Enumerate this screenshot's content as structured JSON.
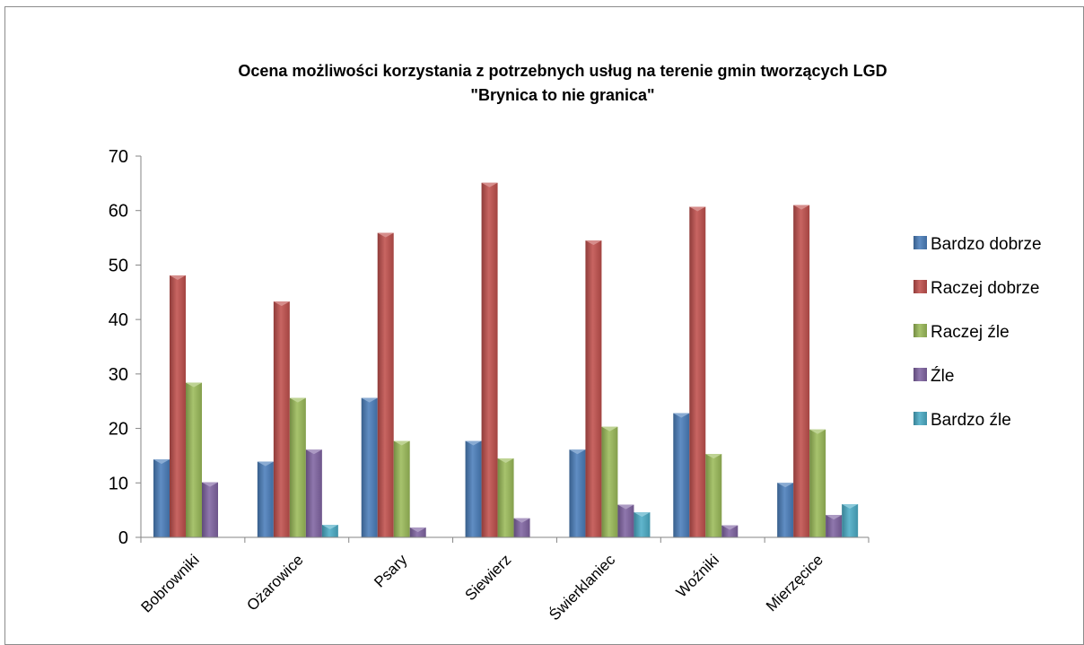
{
  "chart_data": {
    "type": "bar",
    "title_lines": [
      "Ocena możliwości korzystania z potrzebnych usług  na terenie gmin tworzących LGD",
      "\"Brynica to nie granica\""
    ],
    "categories": [
      "Bobrowniki",
      "Ożarowice",
      "Psary",
      "Siewierz",
      "Świerklaniec",
      "Woźniki",
      "Mierzęcice"
    ],
    "ylim": [
      0,
      70
    ],
    "yticks": [
      0,
      10,
      20,
      30,
      40,
      50,
      60,
      70
    ],
    "legend_position": "right",
    "grid": false,
    "series": [
      {
        "name": "Bardzo dobrze",
        "color": "#4a7ebb",
        "values": [
          14.3,
          13.9,
          25.6,
          17.7,
          16.1,
          22.8,
          10.0
        ]
      },
      {
        "name": "Raczej dobrze",
        "color": "#c0504d",
        "values": [
          48.1,
          43.3,
          55.9,
          65.1,
          54.5,
          60.7,
          61.0
        ]
      },
      {
        "name": "Raczej źle",
        "color": "#9bbb59",
        "values": [
          28.4,
          25.6,
          17.7,
          14.5,
          20.3,
          15.3,
          19.8
        ]
      },
      {
        "name": "Źle",
        "color": "#8064a2",
        "values": [
          10.1,
          16.1,
          1.8,
          3.5,
          6.0,
          2.2,
          4.1
        ]
      },
      {
        "name": "Bardzo źle",
        "color": "#4bacc6",
        "values": [
          0,
          2.3,
          0,
          0,
          4.6,
          0,
          6.1
        ]
      }
    ]
  }
}
